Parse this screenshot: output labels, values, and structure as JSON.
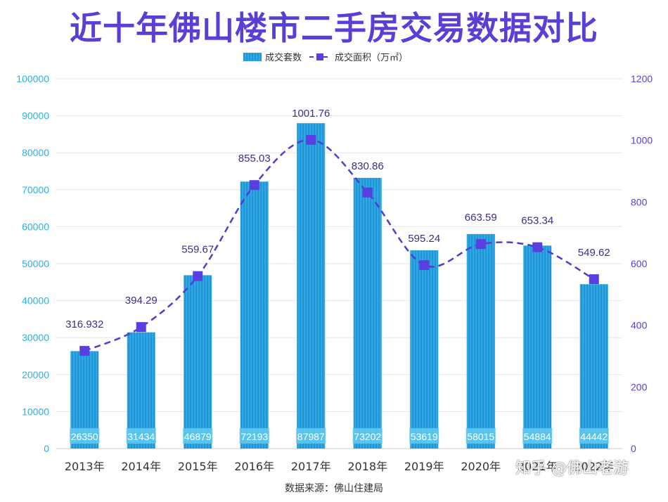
{
  "title": "近十年佛山楼市二手房交易数据对比",
  "source": "数据来源：佛山住建局",
  "watermark": "知乎 @佛山老游",
  "colors": {
    "title": "#5a3ed6",
    "bar": "#2fa9e6",
    "bar_stripe": "#1a7fc4",
    "line": "#4a3fcf",
    "left_axis": "#26b3e3",
    "right_axis": "#5a3ed6",
    "grid": "#e6e6e6"
  },
  "chart_data": {
    "type": "bar",
    "title": "近十年佛山楼市二手房交易数据对比",
    "categories": [
      "2013年",
      "2014年",
      "2015年",
      "2016年",
      "2017年",
      "2018年",
      "2019年",
      "2020年",
      "2021年",
      "2022年"
    ],
    "series": [
      {
        "name": "成交套数",
        "type": "bar",
        "axis": "left",
        "values": [
          26350,
          31434,
          46879,
          72193,
          87987,
          73202,
          53619,
          58015,
          54884,
          44442
        ],
        "labels": [
          "26350",
          "31434",
          "46879",
          "72193",
          "87987",
          "73202",
          "53619",
          "58015",
          "54884",
          "44442"
        ]
      },
      {
        "name": "成交面积（万㎡）",
        "type": "line",
        "style": "dashed",
        "axis": "right",
        "values": [
          316.932,
          394.29,
          559.67,
          855.03,
          1001.76,
          830.86,
          595.24,
          663.59,
          653.34,
          549.62
        ],
        "labels": [
          "316.932",
          "394.29",
          "559.67",
          "855.03",
          "1001.76",
          "830.86",
          "595.24",
          "663.59",
          "653.34",
          "549.62"
        ]
      }
    ],
    "y_left": {
      "range": [
        0,
        100000
      ],
      "ticks": [
        "0",
        "10000",
        "20000",
        "30000",
        "40000",
        "50000",
        "60000",
        "70000",
        "80000",
        "90000",
        "100000"
      ]
    },
    "y_right": {
      "range": [
        0,
        1200
      ],
      "ticks": [
        "0",
        "200",
        "400",
        "600",
        "800",
        "1000",
        "1200"
      ]
    },
    "grid": true,
    "legend_position": "top-center"
  }
}
